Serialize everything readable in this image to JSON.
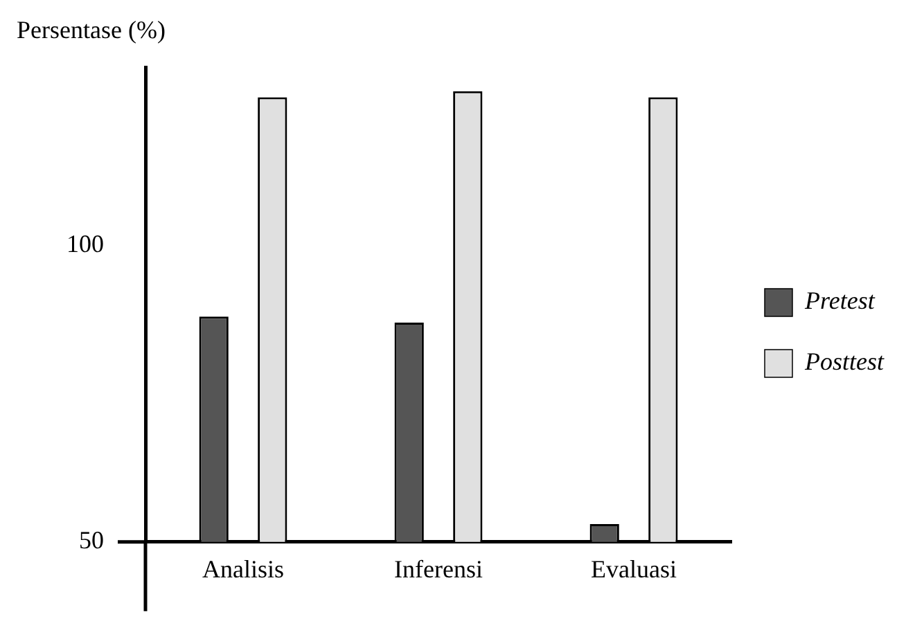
{
  "chart_data": {
    "type": "bar",
    "ylabel": "Persentase (%)",
    "categories": [
      "Analisis",
      "Inferensi",
      "Evaluasi"
    ],
    "series": [
      {
        "name": "Pretest",
        "color": "#555555",
        "values": [
          88,
          87,
          53
        ]
      },
      {
        "name": "Posttest",
        "color": "#e0e0e0",
        "values": [
          125,
          126,
          125
        ]
      }
    ],
    "ylim": [
      50,
      130
    ],
    "yticks": [
      50,
      100
    ],
    "grid": false,
    "legend": "right"
  }
}
